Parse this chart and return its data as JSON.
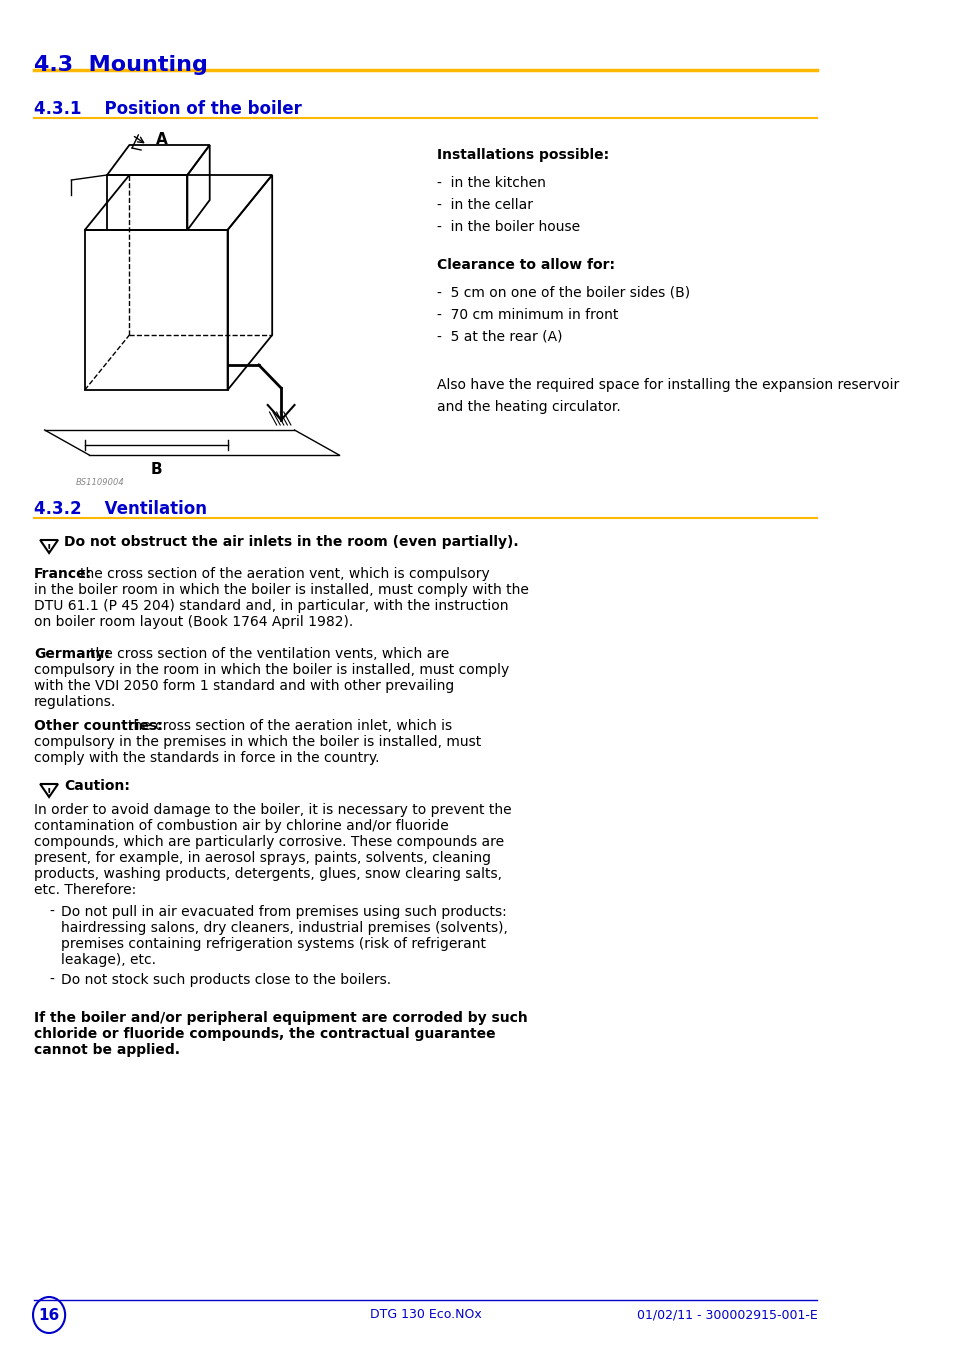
{
  "page_bg": "#ffffff",
  "blue_color": "#0000CC",
  "gold_color": "#FFB800",
  "black_color": "#000000",
  "section_43_title": "4.3  Mounting",
  "section_431_title": "4.3.1    Position of the boiler",
  "section_432_title": "4.3.2    Ventilation",
  "installations_title": "Installations possible:",
  "installations_items": [
    "in the kitchen",
    "in the cellar",
    "in the boiler house"
  ],
  "clearance_title": "Clearance to allow for:",
  "clearance_items": [
    "5 cm on one of the boiler sides (B)",
    "70 cm minimum in front",
    "5 at the rear (A)"
  ],
  "also_text": "Also have the required space for installing the expansion reservoir\nand the heating circulator.",
  "warning_text": "Do not obstruct the air inlets in the room (even partially).",
  "france_text": "France: the cross section of the aeration vent, which is compulsory\nin the boiler room in which the boiler is installed, must comply with the\nDTU 61.1 (P 45 204) standard and, in particular, with the instruction\non boiler room layout (Book 1764 April 1982).",
  "germany_text": "Germany: the cross section of the ventilation vents, which are\ncompulsory in the room in which the boiler is installed, must comply\nwith the VDI 2050 form 1 standard and with other prevailing\nregulations.",
  "other_text": "Other countries: the cross section of the aeration inlet, which is\ncompulsory in the premises in which the boiler is installed, must\ncomply with the standards in force in the country.",
  "caution_title": "Caution:",
  "caution_text": "In order to avoid damage to the boiler, it is necessary to prevent the\ncontamination of combustion air by chlorine and/or fluoride\ncompounds, which are particularly corrosive. These compounds are\npresent, for example, in aerosol sprays, paints, solvents, cleaning\nproducts, washing products, detergents, glues, snow clearing salts,\netc. Therefore:",
  "caution_bullets": [
    "Do not pull in air evacuated from premises using such products:\nhairdressing salons, dry cleaners, industrial premises (solvents),\npremises containing refrigeration systems (risk of refrigerant\nleakage), etc.",
    "Do not stock such products close to the boilers."
  ],
  "final_bold_text": "If the boiler and/or peripheral equipment are corroded by such\nchloride or fluoride compounds, the contractual guarantee\ncannot be applied.",
  "footer_page": "16",
  "footer_center": "DTG 130 Eco.NOx",
  "footer_right": "01/02/11 - 300002915-001-E"
}
